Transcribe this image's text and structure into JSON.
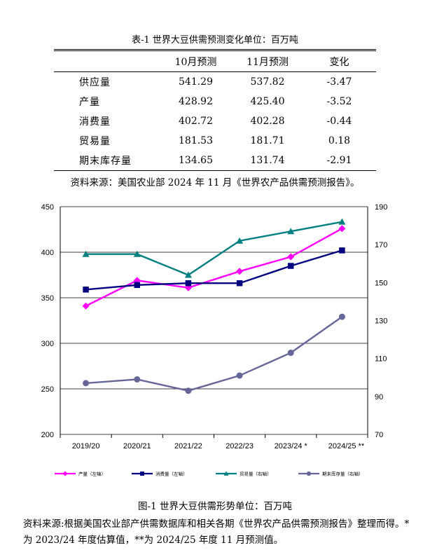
{
  "table": {
    "title": "表-1 世界大豆供需预测变化单位：百万吨",
    "headers": [
      "",
      "10月预测",
      "11月预测",
      "变化"
    ],
    "rows": [
      {
        "label": "供应量",
        "oct": "541.29",
        "nov": "537.82",
        "change": "-3.47"
      },
      {
        "label": "产量",
        "oct": "428.92",
        "nov": "425.40",
        "change": "-3.52"
      },
      {
        "label": "消费量",
        "oct": "402.72",
        "nov": "402.28",
        "change": "-0.44"
      },
      {
        "label": "贸易量",
        "oct": "181.53",
        "nov": "181.71",
        "change": "0.18"
      },
      {
        "label": "期末库存量",
        "oct": "134.65",
        "nov": "131.74",
        "change": "-2.91"
      }
    ],
    "source": "资料来源：美国农业部 2024 年 11 月《世界农产品供需预测报告》。"
  },
  "chart_data": {
    "type": "line",
    "categories": [
      "2019/20",
      "2020/21",
      "2021/22",
      "2022/23",
      "2023/24 *",
      "2024/25 **"
    ],
    "left_axis": {
      "range": [
        200,
        450
      ],
      "ticks": [
        200,
        250,
        300,
        350,
        400,
        450
      ]
    },
    "right_axis": {
      "range": [
        70,
        190
      ],
      "ticks": [
        70,
        90,
        110,
        130,
        150,
        170,
        190
      ]
    },
    "grid": true,
    "legend_position": "bottom",
    "series": [
      {
        "name": "产量（左轴）",
        "axis": "left",
        "color": "#ff00ff",
        "marker": "diamond",
        "values": [
          341,
          369,
          361,
          379,
          395,
          426
        ]
      },
      {
        "name": "消费量（左轴）",
        "axis": "left",
        "color": "#000080",
        "marker": "square",
        "values": [
          359,
          364,
          366,
          366,
          385,
          402
        ]
      },
      {
        "name": "贸易量（右轴）",
        "axis": "right",
        "color": "#008080",
        "marker": "triangle",
        "values": [
          165,
          165,
          154,
          172,
          177,
          182
        ]
      },
      {
        "name": "期末库存量（右轴）",
        "axis": "right",
        "color": "#666699",
        "marker": "circle",
        "values": [
          97,
          99,
          93,
          101,
          113,
          132
        ]
      }
    ]
  },
  "figure": {
    "title": "图-1 世界大豆供需形势单位：百万吨",
    "source": "资料来源:根据美国农业部产供需数据库和相关各期《世界农产品供需预测报告》整理而得。*为 2023/24 年度估算值，**为 2024/25 年度 11 月预测值。"
  }
}
